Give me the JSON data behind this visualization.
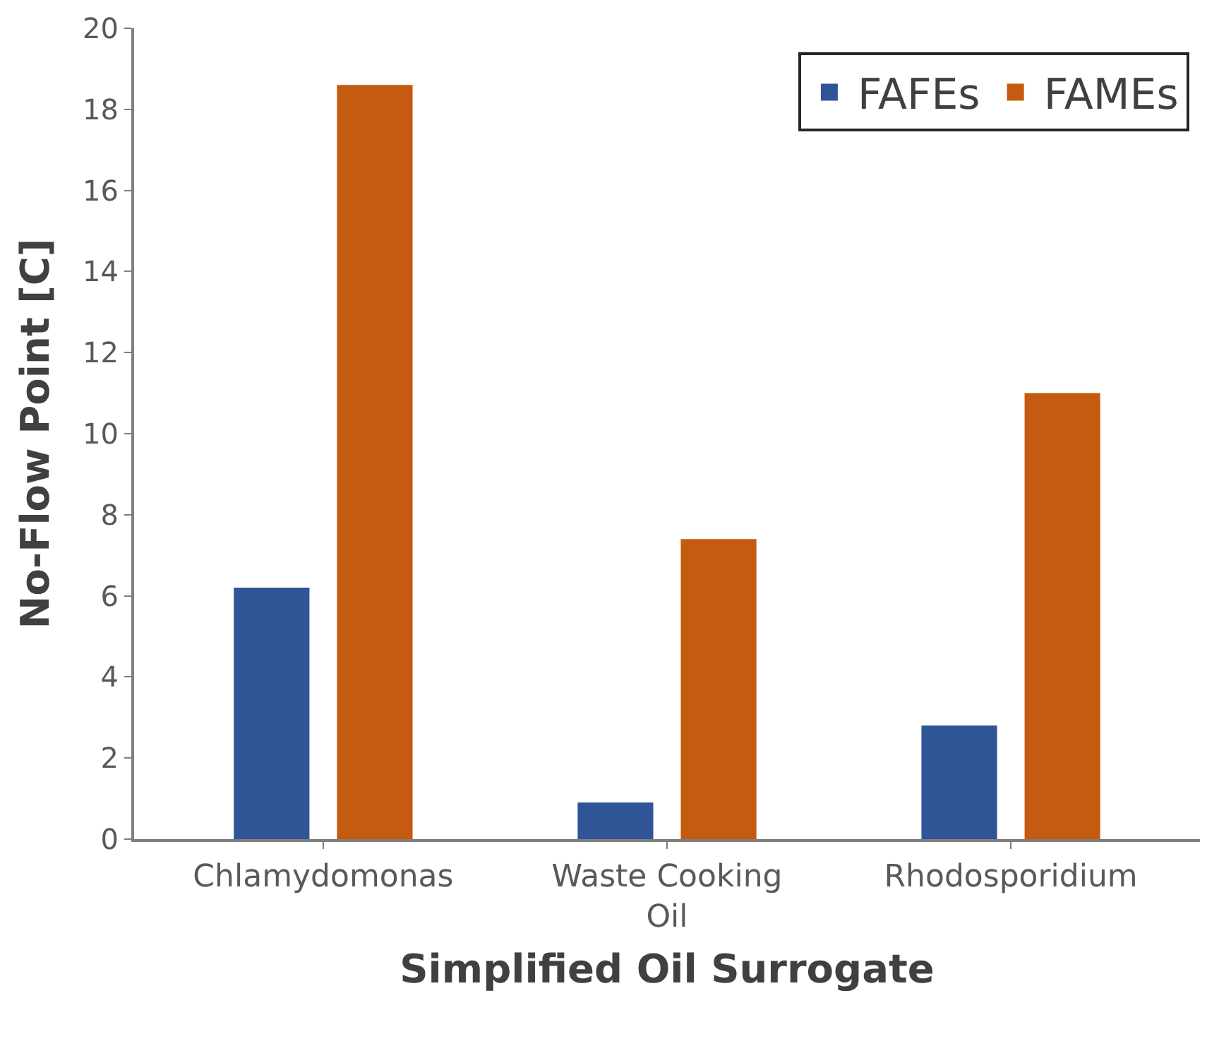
{
  "chart_data": {
    "type": "bar",
    "xlabel": "Simplified Oil Surrogate",
    "ylabel": "No-Flow Point [C]",
    "categories": [
      "Chlamydomonas",
      "Waste Cooking Oil",
      "Rhodosporidium"
    ],
    "series": [
      {
        "name": "FAFEs",
        "color": "#2f5597",
        "values": [
          6.2,
          0.9,
          2.8
        ]
      },
      {
        "name": "FAMEs",
        "color": "#c55a11",
        "values": [
          18.6,
          7.4,
          11.0
        ]
      }
    ],
    "ylim": [
      0,
      20
    ],
    "yticks": [
      0,
      2,
      4,
      6,
      8,
      10,
      12,
      14,
      16,
      18,
      20
    ],
    "legend": "top right"
  }
}
